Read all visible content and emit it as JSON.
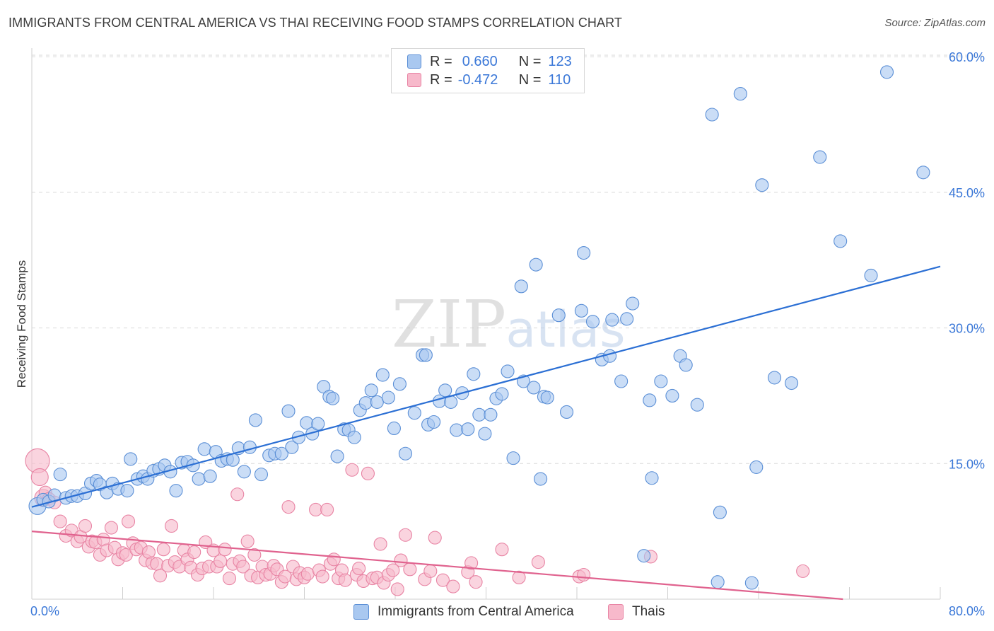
{
  "title": "IMMIGRANTS FROM CENTRAL AMERICA VS THAI RECEIVING FOOD STAMPS CORRELATION CHART",
  "source": "Source: ZipAtlas.com",
  "watermark": {
    "zip": "ZIP",
    "atlas": "atlas"
  },
  "legend": {
    "rows": [
      {
        "r_label": "R =",
        "r_value": "0.660",
        "n_label": "N =",
        "n_value": "123"
      },
      {
        "r_label": "R =",
        "r_value": "-0.472",
        "n_label": "N =",
        "n_value": "110"
      }
    ]
  },
  "bottom_legend": [
    "Immigrants from Central America",
    "Thais"
  ],
  "colors": {
    "blue_fill": "#a9c8f0",
    "blue_stroke": "#5b8fd6",
    "blue_line": "#2b6fd4",
    "pink_fill": "#f7b9cb",
    "pink_stroke": "#e884a4",
    "pink_line": "#e0628e",
    "axis_text": "#3b78d8",
    "grid": "#d9d9d9"
  },
  "chart_data": {
    "type": "scatter",
    "title": "IMMIGRANTS FROM CENTRAL AMERICA VS THAI RECEIVING FOOD STAMPS CORRELATION CHART",
    "xlabel": "",
    "ylabel": "Receiving Food Stamps",
    "xlim": [
      0,
      80
    ],
    "ylim": [
      0,
      63
    ],
    "x_tick_labels": [
      "0.0%",
      "80.0%"
    ],
    "y_tick_labels": [
      "15.0%",
      "30.0%",
      "45.0%",
      "60.0%"
    ],
    "y_ticks": [
      15,
      30,
      45,
      60
    ],
    "grid": true,
    "series": [
      {
        "name": "Immigrants from Central America",
        "trend": {
          "x": [
            0,
            80
          ],
          "y": [
            10.2,
            36.8
          ]
        },
        "points": [
          [
            0.5,
            10.3
          ],
          [
            1,
            11
          ],
          [
            1.5,
            10.8
          ],
          [
            2,
            11.5
          ],
          [
            2.5,
            13.8
          ],
          [
            3,
            11.2
          ],
          [
            3.5,
            11.4
          ],
          [
            4,
            11.4
          ],
          [
            4.7,
            11.7
          ],
          [
            5.2,
            12.8
          ],
          [
            5.7,
            13.1
          ],
          [
            6,
            12.7
          ],
          [
            6.6,
            11.8
          ],
          [
            7.1,
            12.8
          ],
          [
            7.6,
            12.2
          ],
          [
            8.4,
            12
          ],
          [
            8.7,
            15.5
          ],
          [
            9.3,
            13.3
          ],
          [
            9.8,
            13.6
          ],
          [
            10.2,
            13.3
          ],
          [
            10.7,
            14.2
          ],
          [
            11.2,
            14.4
          ],
          [
            11.7,
            14.8
          ],
          [
            12.2,
            14.1
          ],
          [
            12.7,
            12
          ],
          [
            13.2,
            15.1
          ],
          [
            13.7,
            15.2
          ],
          [
            14.2,
            14.8
          ],
          [
            14.7,
            13.3
          ],
          [
            15.2,
            16.6
          ],
          [
            15.7,
            13.6
          ],
          [
            16.2,
            16.3
          ],
          [
            16.7,
            15.3
          ],
          [
            17.2,
            15.5
          ],
          [
            17.7,
            15.4
          ],
          [
            18.2,
            16.7
          ],
          [
            18.7,
            14.1
          ],
          [
            19.2,
            16.8
          ],
          [
            19.7,
            19.8
          ],
          [
            20.2,
            13.8
          ],
          [
            20.9,
            15.9
          ],
          [
            21.4,
            16.1
          ],
          [
            22,
            16.1
          ],
          [
            22.6,
            20.8
          ],
          [
            22.9,
            16.8
          ],
          [
            23.5,
            17.9
          ],
          [
            24.2,
            19.5
          ],
          [
            24.7,
            18.3
          ],
          [
            25.2,
            19.4
          ],
          [
            25.7,
            23.5
          ],
          [
            26.2,
            22.4
          ],
          [
            26.5,
            22.2
          ],
          [
            26.9,
            15.8
          ],
          [
            27.5,
            18.8
          ],
          [
            27.9,
            18.7
          ],
          [
            28.4,
            17.9
          ],
          [
            28.9,
            20.9
          ],
          [
            29.4,
            21.7
          ],
          [
            29.9,
            23.1
          ],
          [
            30.4,
            21.8
          ],
          [
            30.9,
            24.8
          ],
          [
            31.4,
            22.3
          ],
          [
            31.9,
            18.9
          ],
          [
            32.4,
            23.8
          ],
          [
            32.9,
            16.1
          ],
          [
            33.7,
            20.6
          ],
          [
            34.4,
            27
          ],
          [
            34.7,
            27
          ],
          [
            34.9,
            19.3
          ],
          [
            35.4,
            19.6
          ],
          [
            35.9,
            21.9
          ],
          [
            36.4,
            23.1
          ],
          [
            36.9,
            21.8
          ],
          [
            37.4,
            18.7
          ],
          [
            37.9,
            22.8
          ],
          [
            38.4,
            18.8
          ],
          [
            38.9,
            24.9
          ],
          [
            39.4,
            20.4
          ],
          [
            39.9,
            18.3
          ],
          [
            40.4,
            20.4
          ],
          [
            40.9,
            22.2
          ],
          [
            41.4,
            22.7
          ],
          [
            41.9,
            25.2
          ],
          [
            42.4,
            15.6
          ],
          [
            43.1,
            34.6
          ],
          [
            43.3,
            24.1
          ],
          [
            44.2,
            23.4
          ],
          [
            44.4,
            37
          ],
          [
            45.1,
            22.4
          ],
          [
            45.4,
            22.3
          ],
          [
            46.4,
            31.4
          ],
          [
            47.1,
            20.7
          ],
          [
            48.4,
            31.9
          ],
          [
            48.6,
            38.3
          ],
          [
            49.4,
            30.7
          ],
          [
            50.2,
            26.5
          ],
          [
            50.9,
            26.9
          ],
          [
            51.1,
            30.9
          ],
          [
            51.9,
            24.1
          ],
          [
            52.4,
            31
          ],
          [
            52.9,
            32.7
          ],
          [
            54.4,
            22
          ],
          [
            54.6,
            13.4
          ],
          [
            55.4,
            24.1
          ],
          [
            56.4,
            22.5
          ],
          [
            57.1,
            26.9
          ],
          [
            57.6,
            25.9
          ],
          [
            58.6,
            21.5
          ],
          [
            60.4,
            1.9
          ],
          [
            60.6,
            9.6
          ],
          [
            62.4,
            55.9
          ],
          [
            63.4,
            1.8
          ],
          [
            64.3,
            45.8
          ],
          [
            65.4,
            24.5
          ],
          [
            66.9,
            23.9
          ],
          [
            69.4,
            48.9
          ],
          [
            59.9,
            53.6
          ],
          [
            75.3,
            58.3
          ],
          [
            78.5,
            47.2
          ],
          [
            73.9,
            35.8
          ],
          [
            53.9,
            4.8
          ],
          [
            63.8,
            14.6
          ],
          [
            71.2,
            39.6
          ],
          [
            44.8,
            13.3
          ]
        ]
      },
      {
        "name": "Thais",
        "trend": {
          "x": [
            0,
            80
          ],
          "y": [
            7.5,
            -0.9
          ]
        },
        "points": [
          [
            0.5,
            15.3
          ],
          [
            0.7,
            13.5
          ],
          [
            1,
            11.2
          ],
          [
            1.2,
            11.8
          ],
          [
            1.5,
            11.1
          ],
          [
            2,
            10.7
          ],
          [
            2.5,
            8.6
          ],
          [
            3,
            7
          ],
          [
            3.5,
            7.6
          ],
          [
            4,
            6.4
          ],
          [
            4.3,
            6.9
          ],
          [
            4.7,
            8.1
          ],
          [
            5,
            5.8
          ],
          [
            5.3,
            6.4
          ],
          [
            5.6,
            6.3
          ],
          [
            6,
            4.9
          ],
          [
            6.3,
            6.6
          ],
          [
            6.6,
            5.4
          ],
          [
            7,
            7.9
          ],
          [
            7.3,
            5.7
          ],
          [
            7.6,
            4.4
          ],
          [
            8,
            5.1
          ],
          [
            8.3,
            4.9
          ],
          [
            8.5,
            8.6
          ],
          [
            8.9,
            6.2
          ],
          [
            9.2,
            5.5
          ],
          [
            9.6,
            5.7
          ],
          [
            10,
            4.3
          ],
          [
            10.3,
            5.2
          ],
          [
            10.6,
            4
          ],
          [
            11,
            3.9
          ],
          [
            11.3,
            2.6
          ],
          [
            11.6,
            5.5
          ],
          [
            12,
            3.7
          ],
          [
            12.3,
            8.1
          ],
          [
            12.6,
            4.1
          ],
          [
            13,
            3.6
          ],
          [
            13.4,
            5.4
          ],
          [
            13.7,
            4.4
          ],
          [
            14,
            3.5
          ],
          [
            14.3,
            5.2
          ],
          [
            14.6,
            2.7
          ],
          [
            15,
            3.4
          ],
          [
            15.3,
            6.3
          ],
          [
            15.6,
            3.6
          ],
          [
            16,
            5.4
          ],
          [
            16.3,
            3.6
          ],
          [
            16.6,
            4.2
          ],
          [
            17,
            5.5
          ],
          [
            17.4,
            2.3
          ],
          [
            17.7,
            3.9
          ],
          [
            18.1,
            11.6
          ],
          [
            18.3,
            4.2
          ],
          [
            18.6,
            3.6
          ],
          [
            19,
            6.4
          ],
          [
            19.3,
            2.6
          ],
          [
            19.6,
            4.9
          ],
          [
            19.9,
            2.4
          ],
          [
            20.3,
            3.6
          ],
          [
            20.6,
            2.7
          ],
          [
            21,
            2.8
          ],
          [
            21.3,
            3.7
          ],
          [
            21.6,
            3.3
          ],
          [
            22,
            1.9
          ],
          [
            22.3,
            2.5
          ],
          [
            22.6,
            10.2
          ],
          [
            23,
            3.6
          ],
          [
            23.3,
            2.2
          ],
          [
            23.6,
            2.9
          ],
          [
            24,
            2.4
          ],
          [
            24.3,
            2.8
          ],
          [
            25,
            9.9
          ],
          [
            25.3,
            3.2
          ],
          [
            25.6,
            2.5
          ],
          [
            26,
            9.9
          ],
          [
            26.3,
            3.9
          ],
          [
            26.6,
            4.4
          ],
          [
            27,
            2.3
          ],
          [
            27.3,
            3.2
          ],
          [
            27.6,
            2.1
          ],
          [
            28.2,
            14.3
          ],
          [
            28.6,
            2.7
          ],
          [
            28.8,
            3.4
          ],
          [
            29.2,
            2
          ],
          [
            29.6,
            13.9
          ],
          [
            30,
            2.3
          ],
          [
            30.4,
            2.4
          ],
          [
            30.7,
            6.1
          ],
          [
            31,
            1.8
          ],
          [
            31.4,
            2.7
          ],
          [
            31.8,
            3.2
          ],
          [
            32.2,
            1.1
          ],
          [
            32.5,
            4.3
          ],
          [
            32.9,
            7.1
          ],
          [
            33.3,
            3.3
          ],
          [
            34.6,
            2.2
          ],
          [
            35.1,
            3.1
          ],
          [
            35.5,
            6.8
          ],
          [
            36.2,
            2.1
          ],
          [
            37.1,
            1.4
          ],
          [
            38.4,
            3
          ],
          [
            38.7,
            4
          ],
          [
            39.1,
            1.9
          ],
          [
            41.4,
            5.5
          ],
          [
            42.9,
            2.4
          ],
          [
            44.6,
            4.1
          ],
          [
            48.2,
            2.5
          ],
          [
            48.6,
            2.7
          ],
          [
            67.9,
            3.1
          ],
          [
            54.5,
            4.7
          ]
        ]
      }
    ]
  }
}
